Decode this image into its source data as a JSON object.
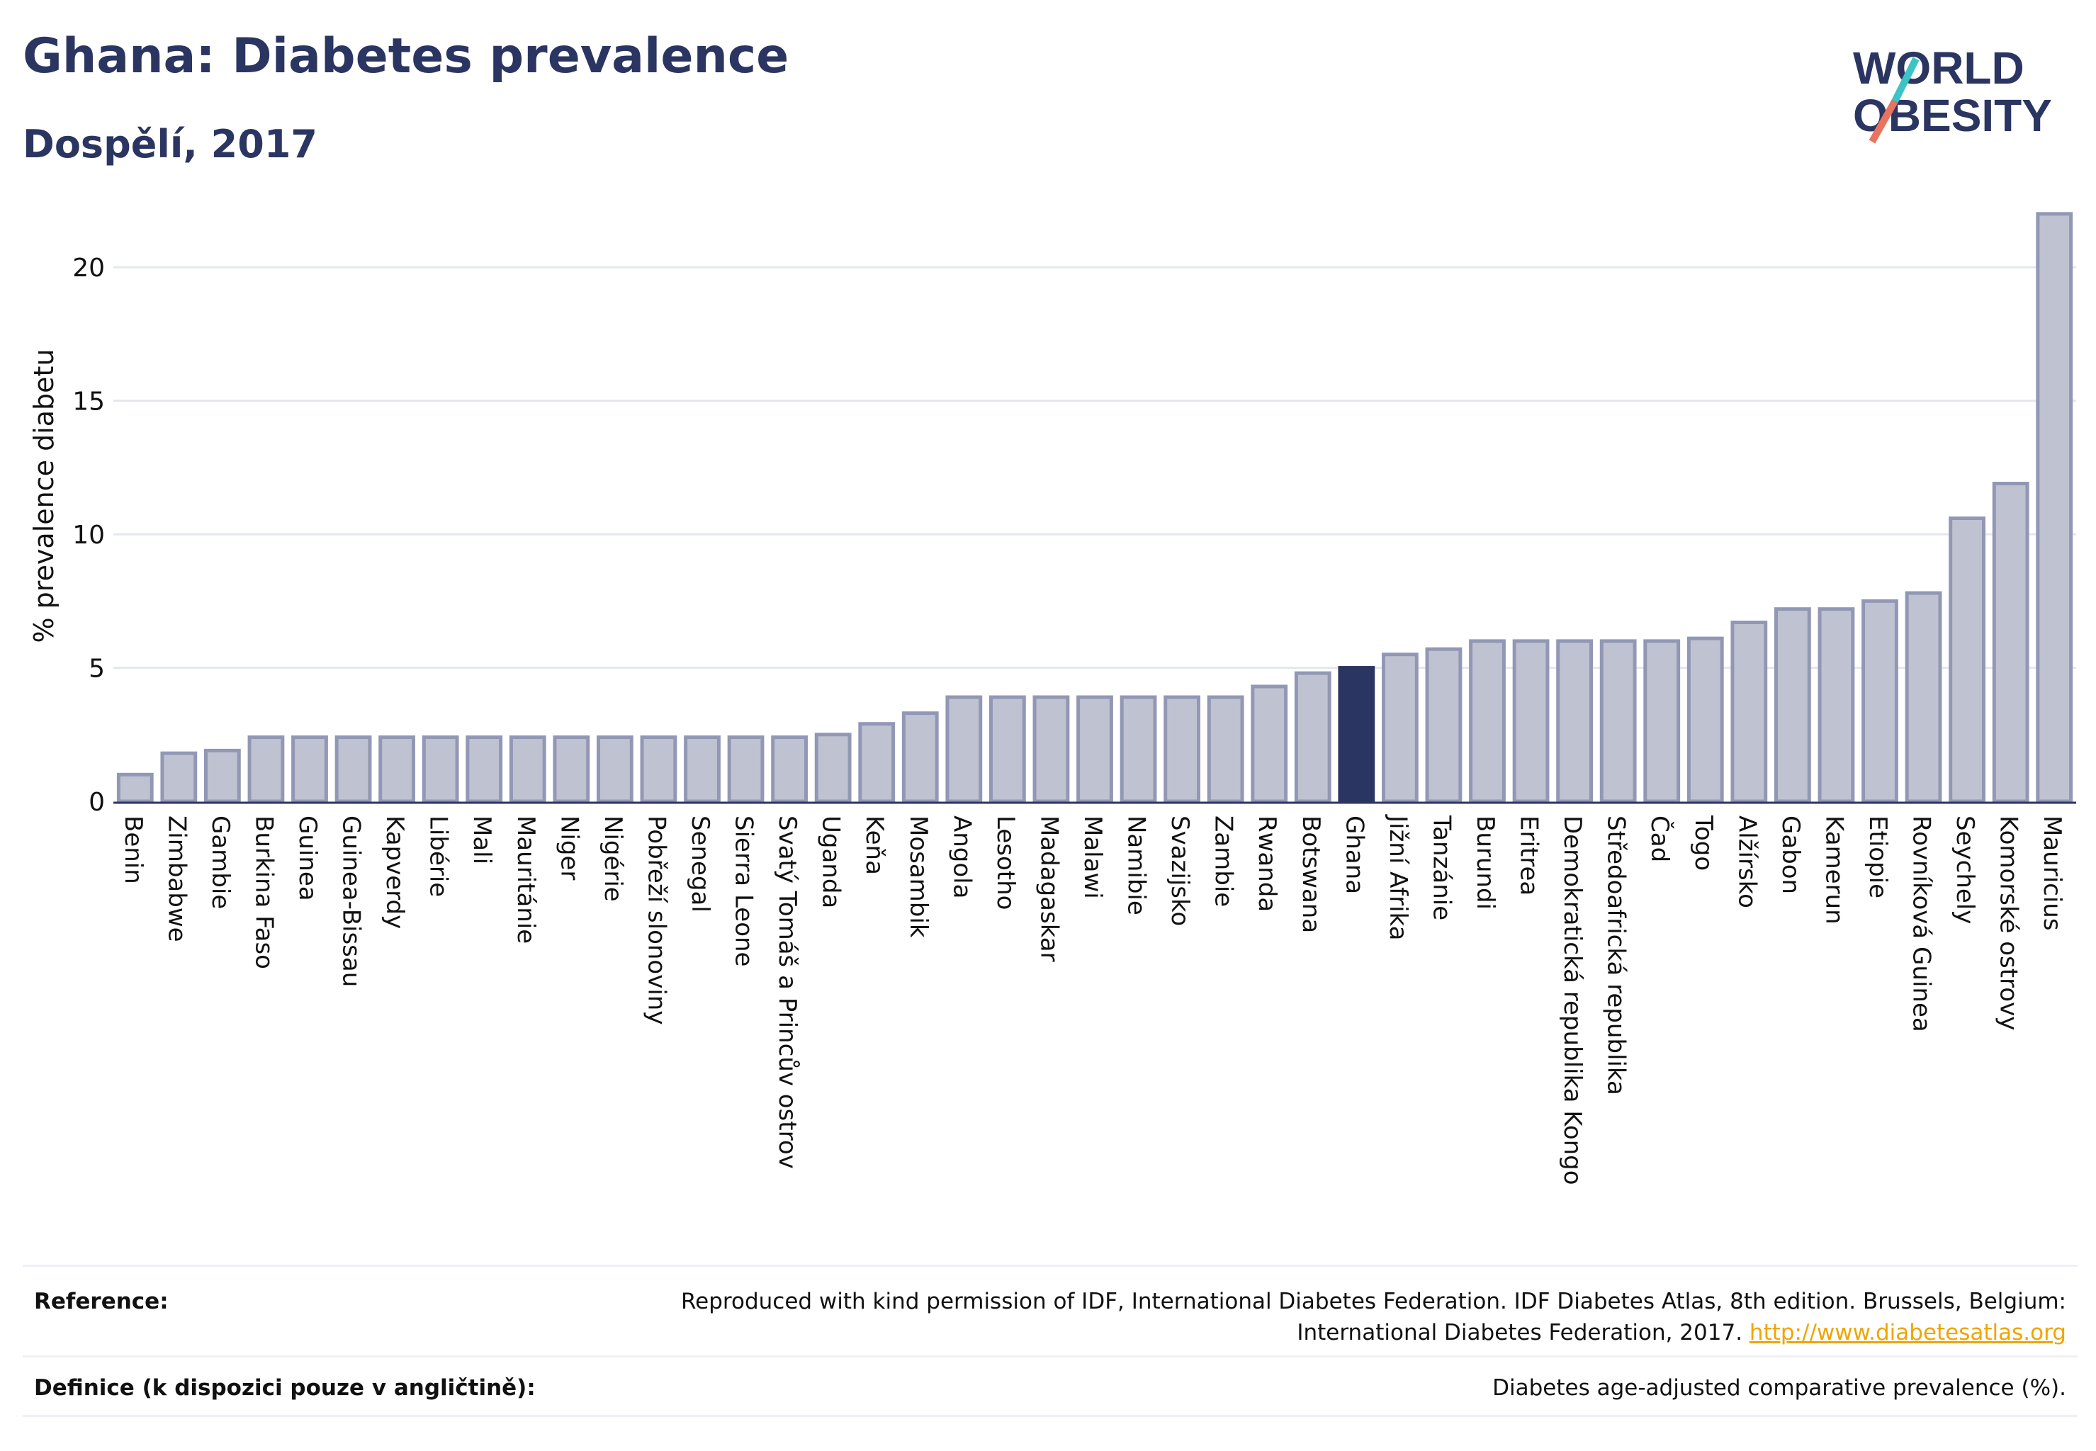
{
  "header": {
    "title": "Ghana: Diabetes prevalence",
    "subtitle": "Dospělí, 2017"
  },
  "logo": {
    "line1": "WORLD",
    "line2": "OBESITY",
    "text_color": "#2b3561",
    "slash_colors": [
      "#e8735f",
      "#3cc3c5"
    ]
  },
  "chart_data": {
    "type": "bar",
    "ylabel": "% prevalence diabetu",
    "ylim": [
      0,
      22.5
    ],
    "yticks": [
      0,
      5,
      10,
      15,
      20
    ],
    "grid": true,
    "highlight": "Ghana",
    "colors": {
      "bar": "#bfc3d1",
      "bar_border": "#9297b5",
      "highlight": "#2b3561",
      "grid": "#e4e7ef"
    },
    "categories": [
      "Benin",
      "Zimbabwe",
      "Gambie",
      "Burkina Faso",
      "Guinea",
      "Guinea-Bissau",
      "Kapverdy",
      "Libérie",
      "Mali",
      "Mauritánie",
      "Niger",
      "Nigérie",
      "Pobřeží slonoviny",
      "Senegal",
      "Sierra Leone",
      "Svatý Tomáš a Princův ostrov",
      "Uganda",
      "Keňa",
      "Mosambik",
      "Angola",
      "Lesotho",
      "Madagaskar",
      "Malawi",
      "Namibie",
      "Svazijsko",
      "Zambie",
      "Rwanda",
      "Botswana",
      "Ghana",
      "Jižní Afrika",
      "Tanzánie",
      "Burundi",
      "Eritrea",
      "Demokratická republika Kongo",
      "Středoafrická republika",
      "Čad",
      "Togo",
      "Alžírsko",
      "Gabon",
      "Kamerun",
      "Etiopie",
      "Rovníková Guinea",
      "Seychely",
      "Komorské ostrovy",
      "Mauricius"
    ],
    "values": [
      1.0,
      1.8,
      1.9,
      2.4,
      2.4,
      2.4,
      2.4,
      2.4,
      2.4,
      2.4,
      2.4,
      2.4,
      2.4,
      2.4,
      2.4,
      2.4,
      2.5,
      2.9,
      3.3,
      3.9,
      3.9,
      3.9,
      3.9,
      3.9,
      3.9,
      3.9,
      4.3,
      4.8,
      5.0,
      5.5,
      5.7,
      6.0,
      6.0,
      6.0,
      6.0,
      6.0,
      6.1,
      6.7,
      7.2,
      7.2,
      7.5,
      7.8,
      10.6,
      11.9,
      22.0
    ]
  },
  "footer": {
    "reference_label": "Reference:",
    "reference_text": "Reproduced with kind permission of IDF, International Diabetes Federation. IDF Diabetes Atlas, 8th edition. Brussels, Belgium:",
    "reference_text2": "International Diabetes Federation, 2017.",
    "reference_link": "http://www.diabetesatlas.org",
    "definition_label": "Definice (k dispozici pouze v angličtině):",
    "definition_text": "Diabetes age-adjusted comparative prevalence (%)."
  }
}
